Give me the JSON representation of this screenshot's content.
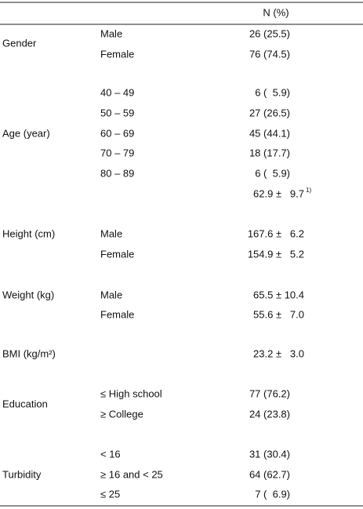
{
  "table": {
    "header": "N (%)",
    "groups": [
      {
        "label": "Gender",
        "rows": [
          {
            "sub": "Male",
            "value": "26 (25.5)"
          },
          {
            "sub": "Female",
            "value": "76 (74.5)"
          }
        ]
      },
      {
        "label": "Age (year)",
        "rows": [
          {
            "sub": "40 – 49",
            "value": "6 (  5.9)"
          },
          {
            "sub": "50 – 59",
            "value": "27 (26.5)"
          },
          {
            "sub": "60 – 69",
            "value": "45 (44.1)"
          },
          {
            "sub": "70 – 79",
            "value": "18 (17.7)"
          },
          {
            "sub": "80 – 89",
            "value": "6 (  5.9)"
          },
          {
            "value": "62.9 ±   9.7",
            "note": "1)"
          }
        ]
      },
      {
        "label": "Height (cm)",
        "rows": [
          {
            "sub": "Male",
            "value": "167.6 ±   6.2"
          },
          {
            "sub": "Female",
            "value": "154.9 ±   5.2"
          }
        ]
      },
      {
        "label": "Weight (kg)",
        "rows": [
          {
            "sub": "Male",
            "value": "65.5 ± 10.4"
          },
          {
            "sub": "Female",
            "value": "55.6 ±   7.0"
          }
        ]
      },
      {
        "label": "BMI (kg/m²)",
        "rows": [
          {
            "value": "23.2 ±   3.0"
          }
        ]
      },
      {
        "label": "Education",
        "rows": [
          {
            "sub": "≤ High school",
            "value": "77 (76.2)"
          },
          {
            "sub": "≥ College",
            "value": "24 (23.8)"
          }
        ]
      },
      {
        "label": "Turbidity",
        "rows": [
          {
            "sub": "< 16",
            "value": "31 (30.4)"
          },
          {
            "sub": "≥ 16 and < 25",
            "value": "64 (62.7)"
          },
          {
            "sub": "≤ 25",
            "value": "7 (  6.9)"
          }
        ]
      }
    ]
  }
}
